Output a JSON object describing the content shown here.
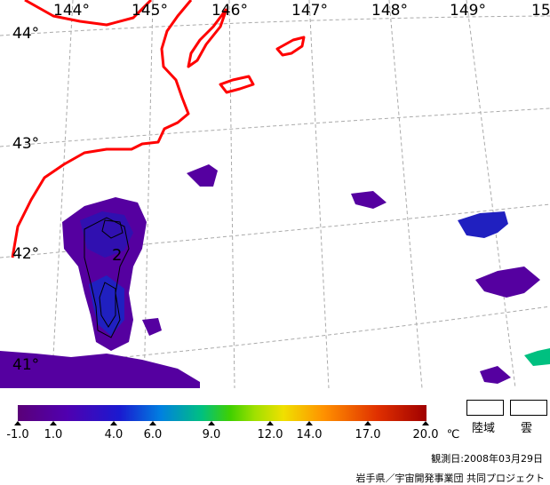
{
  "map": {
    "lon_labels": [
      "144°",
      "145°",
      "146°",
      "147°",
      "148°",
      "149°",
      "15"
    ],
    "lat_labels": [
      "44°",
      "43°",
      "42°",
      "41°"
    ],
    "contour_label": "2",
    "colors": {
      "coast": "#ff0000",
      "grid": "#aaaaaa",
      "cold": "#5500a0",
      "cool": "#2020c0"
    }
  },
  "colorbar": {
    "ticks": [
      "-1.0",
      "1.0",
      "4.0",
      "6.0",
      "9.0",
      "12.0",
      "14.0",
      "17.0",
      "20.0"
    ],
    "unit": "℃"
  },
  "legend": {
    "land_label": "陸域",
    "cloud_label": "雲"
  },
  "footer": {
    "date": "観測日:2008年03月29日",
    "credit": "岩手県／宇宙開発事業団 共同プロジェクト"
  }
}
